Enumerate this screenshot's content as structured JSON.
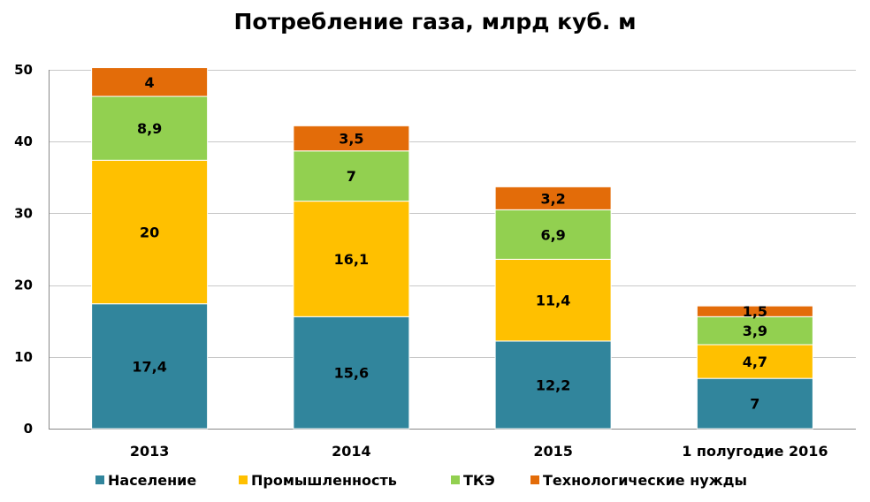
{
  "chart_data": {
    "type": "bar",
    "stacked": true,
    "title": "Потребление газа, млрд куб. м",
    "categories": [
      "2013",
      "2014",
      "2015",
      "1 полугодие 2016"
    ],
    "series": [
      {
        "name": "Население",
        "color": "#31859C",
        "values": [
          17.4,
          15.6,
          12.2,
          7
        ],
        "labels": [
          "17,4",
          "15,6",
          "12,2",
          "7"
        ]
      },
      {
        "name": "Промышленность",
        "color": "#FFC000",
        "values": [
          20,
          16.1,
          11.4,
          4.7
        ],
        "labels": [
          "20",
          "16,1",
          "11,4",
          "4,7"
        ]
      },
      {
        "name": "ТКЭ",
        "color": "#92D050",
        "values": [
          8.9,
          7,
          6.9,
          3.9
        ],
        "labels": [
          "8,9",
          "7",
          "6,9",
          "3,9"
        ]
      },
      {
        "name": "Технологические нужды",
        "color": "#E36C09",
        "values": [
          4,
          3.5,
          3.2,
          1.5
        ],
        "labels": [
          "4",
          "3,5",
          "3,2",
          "1,5"
        ]
      }
    ],
    "ylim": [
      0,
      50
    ],
    "yticks": [
      0,
      10,
      20,
      30,
      40,
      50
    ],
    "grid": true,
    "legend_position": "bottom",
    "xlabel": "",
    "ylabel": ""
  }
}
